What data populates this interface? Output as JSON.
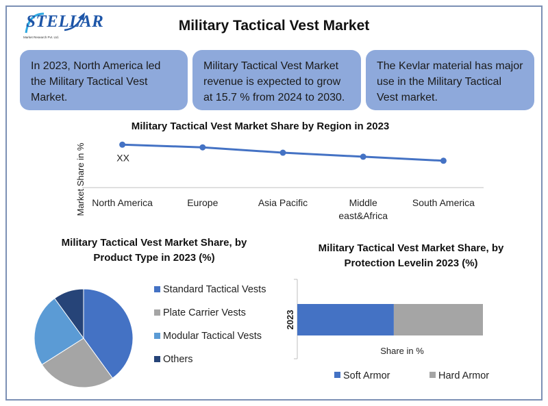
{
  "logo": {
    "text": "STELLAR",
    "subtitle": "Market Research Pvt. Ltd."
  },
  "title": "Military Tactical Vest Market",
  "info_boxes": [
    "In 2023, North America led the Military Tactical Vest Market.",
    "Military Tactical Vest Market revenue is expected to grow at 15.7 % from 2024 to 2030.",
    "The Kevlar material has major use in the Military Tactical Vest market."
  ],
  "chart_data": [
    {
      "type": "line",
      "title": "Military Tactical Vest Market Share by Region in 2023",
      "ylabel": "Market Share in %",
      "categories": [
        "North America",
        "Europe",
        "Asia Pacific",
        "Middle east&Africa",
        "South America"
      ],
      "category_lines": [
        [
          "North America"
        ],
        [
          "Europe"
        ],
        [
          "Asia Pacific"
        ],
        [
          "Middle",
          "east&Africa"
        ],
        [
          "South America"
        ]
      ],
      "series": [
        {
          "values": [
            32,
            30,
            26,
            23,
            20
          ]
        }
      ],
      "ylim": [
        0,
        50
      ],
      "annotations": [
        "XX"
      ],
      "grid": false,
      "color": "#4472c4"
    },
    {
      "type": "pie",
      "title": "Military Tactical Vest Market Share, by Product Type in 2023 (%)",
      "title_lines": [
        "Military Tactical Vest Market Share, by",
        "Product Type in 2023 (%)"
      ],
      "categories": [
        "Standard Tactical Vests",
        "Plate Carrier Vests",
        "Modular Tactical Vests",
        "Others"
      ],
      "values": [
        40,
        26,
        24,
        10
      ],
      "colors": [
        "#4472c4",
        "#a5a5a5",
        "#5b9bd5",
        "#264478"
      ],
      "legend": "right"
    },
    {
      "type": "bar",
      "orientation": "horizontal",
      "stacked": true,
      "title": "Military Tactical Vest Market Share, by Protection Levelin 2023 (%)",
      "title_lines": [
        "Military Tactical Vest Market Share, by",
        "Protection Levelin 2023 (%)"
      ],
      "categories": [
        "2023"
      ],
      "series": [
        {
          "name": "Soft Armor",
          "values": [
            52
          ]
        },
        {
          "name": "Hard Armor",
          "values": [
            48
          ]
        }
      ],
      "colors": [
        "#4472c4",
        "#a5a5a5"
      ],
      "xlabel": "Share in %",
      "xlim": [
        0,
        100
      ],
      "legend": "bottom"
    }
  ]
}
